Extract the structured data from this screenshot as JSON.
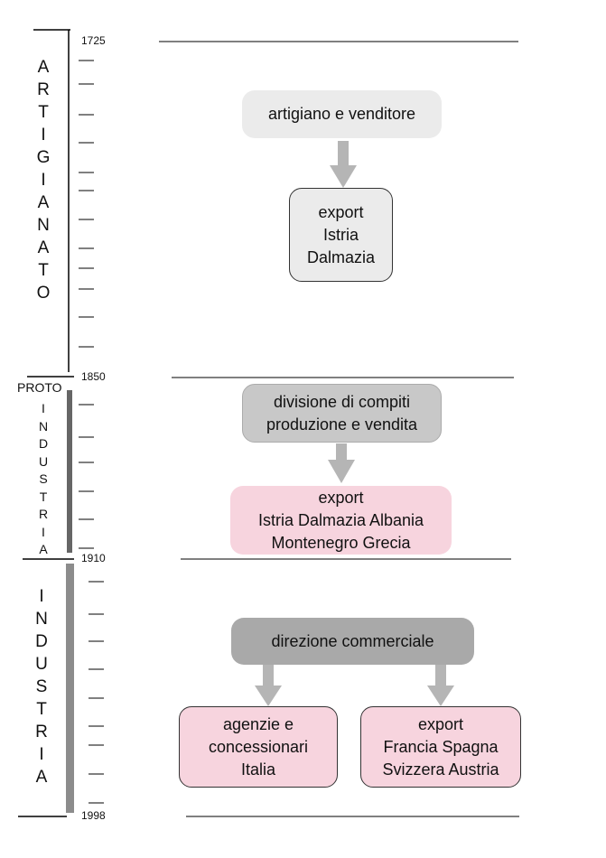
{
  "periods": [
    {
      "label_letters": [
        "A",
        "R",
        "T",
        "I",
        "G",
        "I",
        "A",
        "N",
        "A",
        "T",
        "O"
      ]
    },
    {
      "prefix": "PROTO",
      "label_letters": [
        "I",
        "N",
        "D",
        "U",
        "S",
        "T",
        "R",
        "I",
        "A"
      ]
    },
    {
      "label_letters": [
        "I",
        "N",
        "D",
        "U",
        "S",
        "T",
        "R",
        "I",
        "A"
      ]
    }
  ],
  "years": [
    "1725",
    "1850",
    "1910",
    "1998"
  ],
  "nodes": {
    "artigiano": {
      "lines": [
        "artigiano e venditore"
      ],
      "color": "#ebebeb"
    },
    "export1": {
      "lines": [
        "export",
        "Istria",
        "Dalmazia"
      ],
      "color": "#ebebeb"
    },
    "divisione": {
      "lines": [
        "divisione di compiti",
        "produzione e vendita"
      ],
      "color": "#c8c8c8"
    },
    "export2": {
      "lines": [
        "export",
        "Istria Dalmazia Albania",
        "Montenegro Grecia"
      ],
      "color": "#f7d4de"
    },
    "direzione": {
      "lines": [
        "direzione commerciale"
      ],
      "color": "#a9a9a9"
    },
    "agenzie": {
      "lines": [
        "agenzie e",
        "concessionari",
        "Italia"
      ],
      "color": "#f7d4de"
    },
    "export3": {
      "lines": [
        "export",
        "Francia Spagna",
        "Svizzera Austria"
      ],
      "color": "#f7d4de"
    }
  },
  "colors": {
    "arrow": "#b5b5b5",
    "bar": "#8c8c8c",
    "line": "#000000"
  }
}
